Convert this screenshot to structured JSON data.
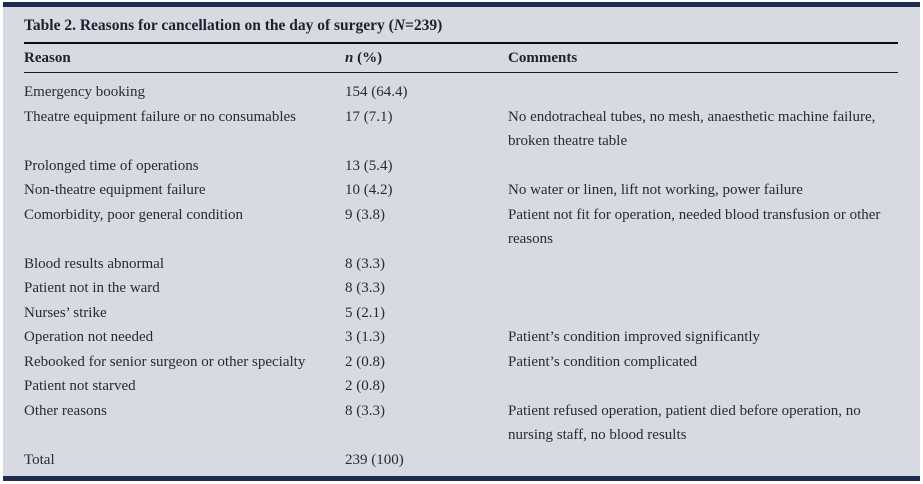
{
  "table": {
    "title": {
      "pre": "Table 2. Reasons for cancellation on the day of surgery (",
      "n_italic": "N",
      "post": "=239)"
    },
    "columns": {
      "reason": "Reason",
      "n_italic": "n",
      "n_rest": " (%)",
      "comments": "Comments"
    },
    "rows": [
      {
        "reason": "Emergency booking",
        "n": "154 (64.4)",
        "comment": ""
      },
      {
        "reason": "Theatre equipment failure or no consumables",
        "n": "17 (7.1)",
        "comment": "No endotracheal tubes, no mesh, anaesthetic machine failure, broken theatre table"
      },
      {
        "reason": "Prolonged time of operations",
        "n": "13 (5.4)",
        "comment": ""
      },
      {
        "reason": "Non-theatre equipment failure",
        "n": "10 (4.2)",
        "comment": "No water or linen, lift not working, power failure"
      },
      {
        "reason": "Comorbidity, poor general condition",
        "n": "9 (3.8)",
        "comment": "Patient not fit for operation, needed blood transfusion or other reasons"
      },
      {
        "reason": "Blood results abnormal",
        "n": "8 (3.3)",
        "comment": ""
      },
      {
        "reason": "Patient not in the ward",
        "n": "8 (3.3)",
        "comment": ""
      },
      {
        "reason": "Nurses’ strike",
        "n": "5 (2.1)",
        "comment": ""
      },
      {
        "reason": "Operation not needed",
        "n": "3 (1.3)",
        "comment": "Patient’s condition improved significantly"
      },
      {
        "reason": "Rebooked for senior surgeon or other specialty",
        "n": "2 (0.8)",
        "comment": "Patient’s condition complicated"
      },
      {
        "reason": "Patient not starved",
        "n": "2 (0.8)",
        "comment": ""
      },
      {
        "reason": "Other reasons",
        "n": "8 (3.3)",
        "comment": "Patient refused operation, patient died before operation, no nursing staff, no blood results"
      }
    ],
    "total": {
      "reason": "Total",
      "n": "239 (100)"
    }
  },
  "colors": {
    "panel_bg": "#d7dae1",
    "bar_navy": "#1e2b4f",
    "rule_black": "#0d0d0d",
    "text": "#262b38"
  }
}
